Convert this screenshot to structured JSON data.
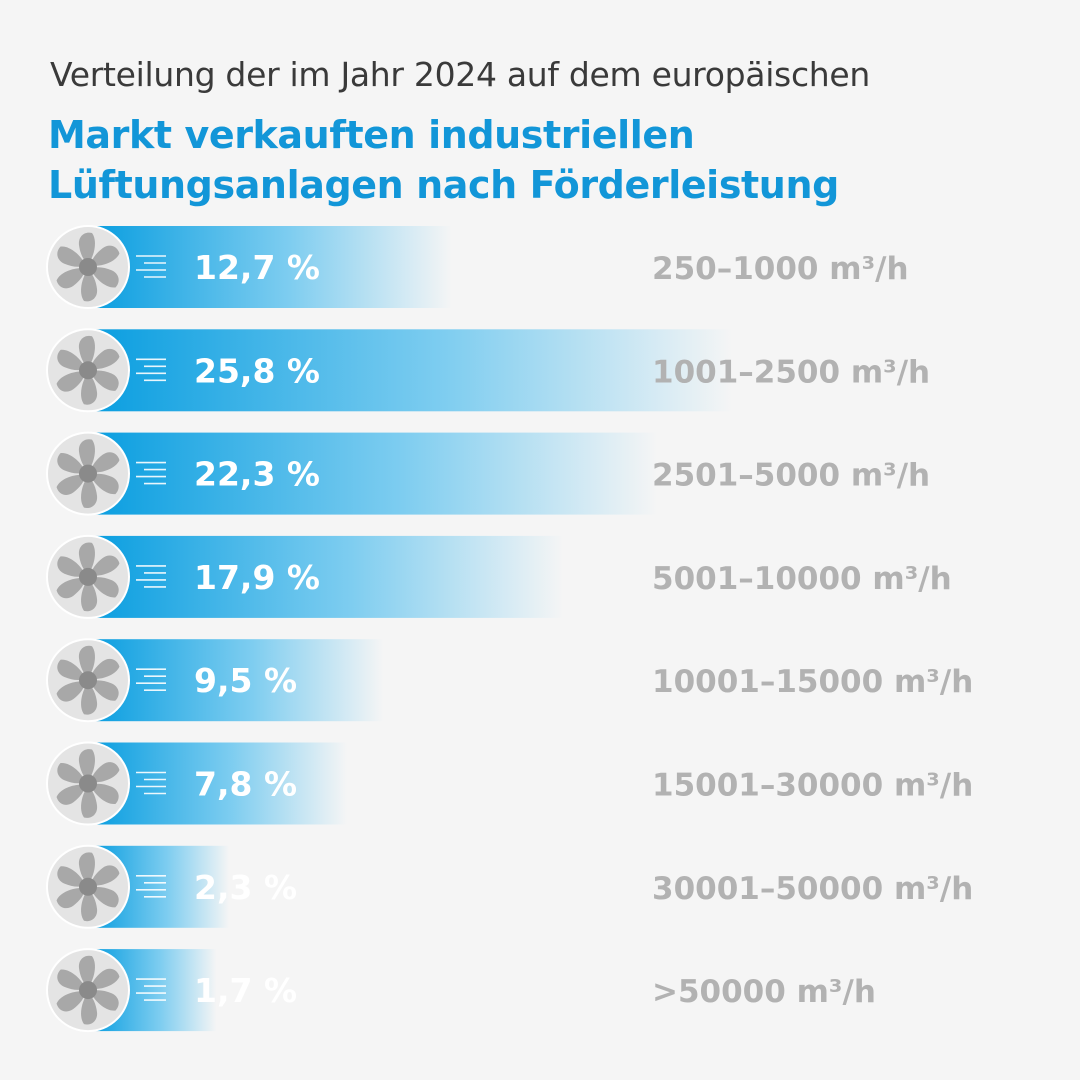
{
  "header": {
    "subtitle": "Verteilung der im Jahr 2024 auf dem europäischen",
    "title": "Markt verkauften industriellen Lüftungsanlagen nach Förderleistung"
  },
  "colors": {
    "bar_start": "#0a9ee0",
    "bar_mid": "#7ecdf0",
    "label_value": "#ffffff",
    "label_range": "#b2b2b2",
    "title": "#1296d8",
    "fan_bg": "#e4e4e4",
    "fan_blade": "#a8a8a8",
    "fan_hub": "#8a8a8a"
  },
  "icons": [
    "fan-icon",
    "airflow-lines-icon"
  ],
  "chart_data": {
    "type": "bar",
    "orientation": "horizontal",
    "categories": [
      "250–1000 m³/h",
      "1001–2500 m³/h",
      "2501–5000 m³/h",
      "5001–10000 m³/h",
      "10001–15000 m³/h",
      "15001–30000 m³/h",
      "30001–50000 m³/h",
      ">50000 m³/h"
    ],
    "values": [
      12.7,
      25.8,
      22.3,
      17.9,
      9.5,
      7.8,
      2.3,
      1.7
    ],
    "value_labels": [
      "12,7 %",
      "25,8 %",
      "22,3 %",
      "17,9 %",
      "9,5 %",
      "7,8 %",
      "2,3 %",
      "1,7 %"
    ],
    "unit": "%"
  }
}
